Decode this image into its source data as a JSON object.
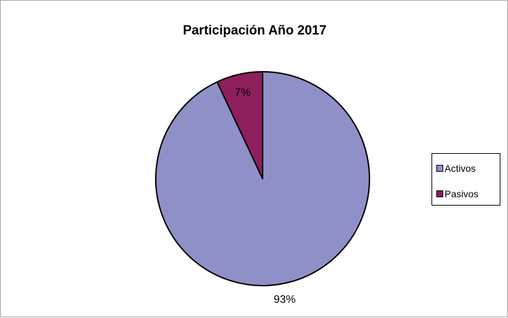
{
  "chart_data": {
    "type": "pie",
    "title": "Participación Año 2017",
    "categories": [
      "Activos",
      "Pasivos"
    ],
    "values": [
      93,
      7
    ],
    "data_labels": [
      "93%",
      "7%"
    ],
    "colors": [
      "#9090c8",
      "#8e1f5c"
    ],
    "legend_position": "right"
  }
}
